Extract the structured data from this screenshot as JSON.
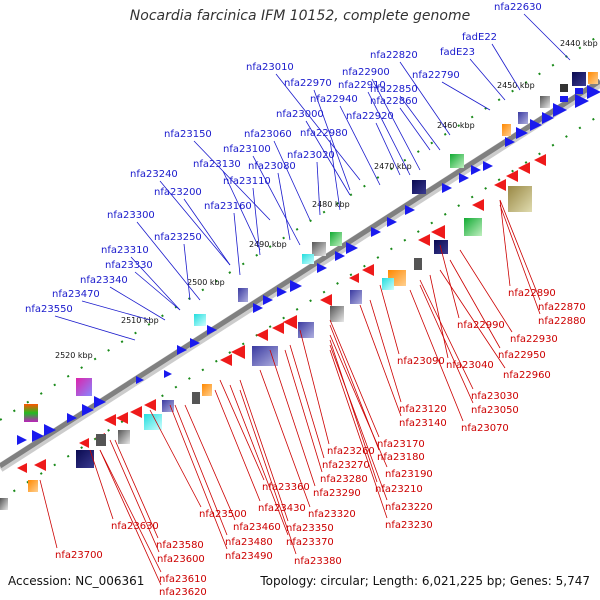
{
  "title": "Nocardia farcinica IFM 10152, complete genome",
  "accession": "Accession: NC_006361",
  "topology": "Topology: circular; Length: 6,021,225 bp; Genes: 5,747",
  "colors": {
    "forward": "#1a1aee",
    "reverse": "#ee1a1a",
    "label_forward": "#1a1acc",
    "label_reverse": "#cc0000",
    "backbone": "#888888"
  },
  "kbp_labels": [
    "2440 kbp",
    "2450 kbp",
    "2460 kbp",
    "2470 kbp",
    "2480 kbp",
    "2490 kbp",
    "2500 kbp",
    "2510 kbp",
    "2520 kbp"
  ],
  "forward_labels": [
    "nfa22630",
    "fadE22",
    "fadE23",
    "nfa22820",
    "nfa22790",
    "nfa22900",
    "nfa22850",
    "nfa23010",
    "nfa22910",
    "nfa22860",
    "nfa22970",
    "nfa22940",
    "nfa22920",
    "nfa23000",
    "nfa22980",
    "nfa23060",
    "nfa23020",
    "nfa23150",
    "nfa23100",
    "nfa23080",
    "nfa23130",
    "nfa23110",
    "nfa23240",
    "nfa23200",
    "nfa23160",
    "nfa23300",
    "nfa23250",
    "nfa23310",
    "nfa23330",
    "nfa23340",
    "nfa23470",
    "nfa23550"
  ],
  "reverse_labels": [
    "nfa22890",
    "nfa22870",
    "nfa22880",
    "nfa22990",
    "nfa22930",
    "nfa22950",
    "nfa23090",
    "nfa23040",
    "nfa22960",
    "nfa23030",
    "nfa23050",
    "nfa23120",
    "nfa23140",
    "nfa23070",
    "nfa23170",
    "nfa23260",
    "nfa23180",
    "nfa23270",
    "nfa23190",
    "nfa23280",
    "nfa23210",
    "nfa23290",
    "nfa23360",
    "nfa23220",
    "nfa23320",
    "nfa23500",
    "nfa23430",
    "nfa23230",
    "nfa23460",
    "nfa23350",
    "nfa23370",
    "nfa23490",
    "nfa23480",
    "nfa23630",
    "nfa23580",
    "nfa23380",
    "nfa23600",
    "nfa23700",
    "nfa23610",
    "nfa23620"
  ]
}
